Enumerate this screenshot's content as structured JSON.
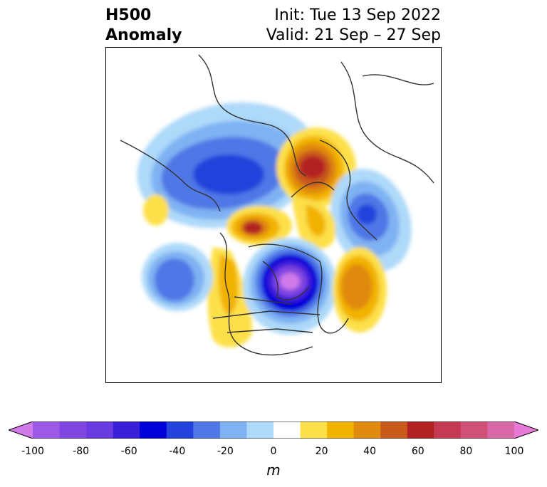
{
  "title": {
    "left_line1": "H500",
    "left_line2": "Anomaly",
    "right_line1": "Init: Tue 13 Sep 2022",
    "right_line2": "Valid: 21 Sep – 27 Sep"
  },
  "colorbar": {
    "unit": "m",
    "ticks": [
      "-100",
      "-80",
      "-60",
      "-40",
      "-20",
      "0",
      "20",
      "40",
      "60",
      "80",
      "100"
    ],
    "colors": [
      "#9b59e6",
      "#7f45e0",
      "#6a3be0",
      "#3a1fd8",
      "#0000d8",
      "#2442dc",
      "#5077e6",
      "#7fb2f2",
      "#aed9f9",
      "#ffffff",
      "#fde04a",
      "#f2b300",
      "#e08a10",
      "#c85a1a",
      "#b22222",
      "#c43a52",
      "#d05078",
      "#d868a8"
    ],
    "extend_low_color": "#d07ae8",
    "extend_high_color": "#e878d8"
  }
}
